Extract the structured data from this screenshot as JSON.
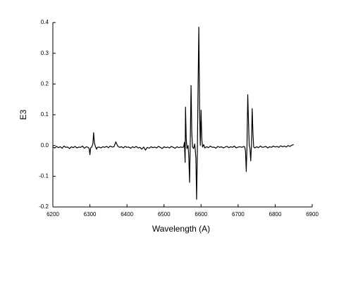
{
  "chart_data": {
    "type": "line",
    "x_label": "Wavelength (A)",
    "y_label": "E3",
    "x": [
      6200,
      6205,
      6210,
      6215,
      6220,
      6225,
      6230,
      6235,
      6240,
      6245,
      6250,
      6255,
      6260,
      6265,
      6270,
      6275,
      6280,
      6285,
      6290,
      6295,
      6298,
      6300,
      6302,
      6305,
      6308,
      6310,
      6312,
      6315,
      6318,
      6320,
      6325,
      6330,
      6335,
      6340,
      6345,
      6350,
      6355,
      6360,
      6365,
      6370,
      6375,
      6380,
      6385,
      6390,
      6395,
      6400,
      6405,
      6410,
      6415,
      6420,
      6425,
      6430,
      6435,
      6440,
      6445,
      6450,
      6455,
      6460,
      6465,
      6470,
      6475,
      6480,
      6485,
      6490,
      6495,
      6500,
      6505,
      6510,
      6515,
      6520,
      6525,
      6530,
      6535,
      6540,
      6545,
      6550,
      6553,
      6555,
      6557,
      6558,
      6560,
      6562,
      6565,
      6567,
      6569,
      6571,
      6573,
      6575,
      6577,
      6580,
      6583,
      6586,
      6588,
      6590,
      6592,
      6594,
      6596,
      6598,
      6600,
      6602,
      6604,
      6607,
      6610,
      6615,
      6620,
      6625,
      6630,
      6635,
      6640,
      6645,
      6650,
      6655,
      6660,
      6665,
      6670,
      6675,
      6680,
      6685,
      6690,
      6695,
      6700,
      6705,
      6710,
      6715,
      6718,
      6720,
      6722,
      6724,
      6726,
      6728,
      6730,
      6732,
      6734,
      6736,
      6738,
      6740,
      6742,
      6745,
      6750,
      6755,
      6760,
      6765,
      6770,
      6775,
      6780,
      6785,
      6790,
      6795,
      6800,
      6805,
      6810,
      6815,
      6820,
      6825,
      6830,
      6835,
      6840,
      6845,
      6850
    ],
    "series": [
      {
        "color": "#000000",
        "values": [
          -0.005,
          -0.008,
          -0.003,
          -0.007,
          -0.004,
          -0.009,
          -0.002,
          -0.006,
          -0.005,
          -0.01,
          -0.004,
          -0.007,
          -0.003,
          -0.008,
          -0.005,
          -0.006,
          -0.002,
          -0.009,
          -0.004,
          -0.006,
          -0.01,
          -0.03,
          -0.008,
          -0.005,
          0.005,
          0.042,
          0.01,
          -0.004,
          -0.012,
          -0.006,
          -0.005,
          -0.008,
          -0.004,
          -0.006,
          -0.003,
          -0.007,
          -0.002,
          -0.005,
          -0.004,
          0.012,
          -0.002,
          -0.006,
          -0.004,
          -0.008,
          -0.003,
          -0.006,
          -0.005,
          -0.009,
          -0.004,
          -0.007,
          -0.003,
          -0.008,
          -0.006,
          -0.012,
          -0.005,
          -0.015,
          -0.006,
          -0.009,
          -0.004,
          -0.007,
          -0.005,
          -0.008,
          -0.003,
          -0.006,
          -0.01,
          -0.004,
          -0.007,
          -0.005,
          -0.008,
          -0.003,
          -0.006,
          -0.009,
          -0.004,
          -0.007,
          -0.005,
          -0.006,
          -0.005,
          0.01,
          -0.055,
          0.125,
          0.02,
          -0.01,
          0.0,
          -0.04,
          -0.12,
          0.02,
          0.195,
          0.04,
          -0.005,
          -0.01,
          0.005,
          -0.04,
          -0.175,
          -0.02,
          0.2,
          0.385,
          0.12,
          0.0,
          0.115,
          0.02,
          -0.005,
          0.003,
          -0.008,
          -0.004,
          -0.007,
          -0.002,
          -0.006,
          -0.005,
          -0.009,
          -0.003,
          -0.006,
          -0.004,
          -0.008,
          -0.005,
          -0.003,
          -0.007,
          -0.004,
          -0.006,
          -0.002,
          -0.008,
          -0.005,
          -0.004,
          -0.006,
          -0.003,
          -0.005,
          -0.02,
          -0.085,
          0.0,
          0.165,
          0.08,
          0.0,
          -0.01,
          -0.05,
          0.0,
          0.12,
          0.04,
          -0.005,
          -0.008,
          -0.004,
          -0.007,
          -0.002,
          -0.006,
          -0.005,
          -0.003,
          -0.008,
          -0.004,
          -0.006,
          -0.002,
          -0.005,
          -0.003,
          -0.006,
          -0.001,
          -0.004,
          -0.002,
          -0.005,
          0.0,
          -0.003,
          0.001,
          0.003
        ]
      }
    ],
    "xlim": [
      6200,
      6900
    ],
    "xticks": [
      6200,
      6300,
      6400,
      6500,
      6600,
      6700,
      6800,
      6900
    ],
    "ylim": [
      -0.2,
      0.4
    ],
    "yticks": [
      -0.2,
      -0.1,
      {
        "value": 0,
        "label": "0.0"
      },
      0.1,
      0.2,
      0.3,
      0.4
    ]
  }
}
